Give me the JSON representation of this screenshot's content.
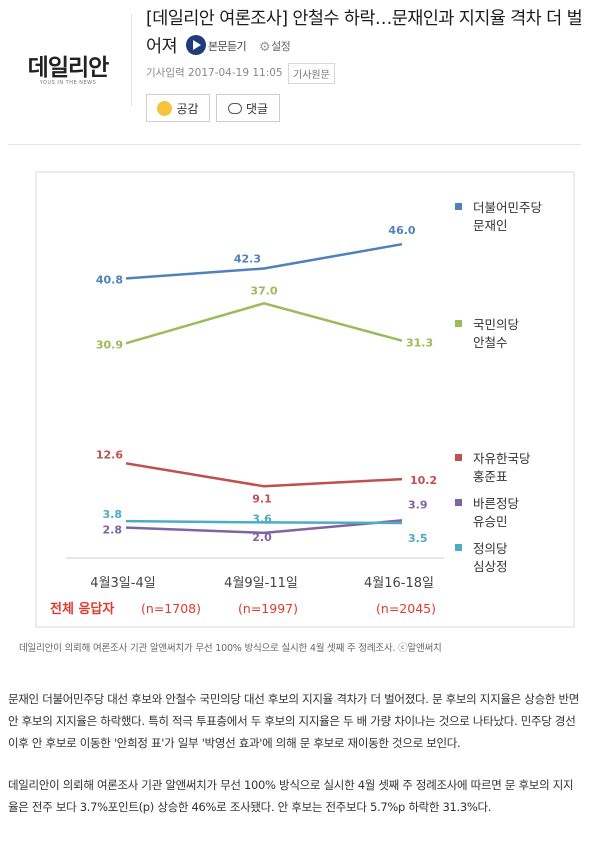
{
  "header": {
    "logo_text": "데일리안",
    "logo_sub": "YOUS IN THE NEWS",
    "title": "[데일리안 여론조사] 안철수 하락…문재인과 지지율 격차 더 벌어져",
    "listen_label": "본문듣기",
    "settings_label": "설정",
    "date_label": "기사입력 2017-04-19 11:05",
    "original_label": "기사원문",
    "like_label": "공감",
    "comment_label": "댓글"
  },
  "chart_data": {
    "type": "line",
    "categories": [
      "4월3일-4일",
      "4월9일-11일",
      "4월16-18일"
    ],
    "sample_sizes": [
      "(n=1708)",
      "(n=1997)",
      "(n=2045)"
    ],
    "sample_title": "전체 응답자",
    "ylim": [
      0,
      50
    ],
    "series": [
      {
        "party": "더불어민주당",
        "name": "문재인",
        "color": "#4f81bd",
        "values": [
          40.8,
          42.3,
          46.0
        ],
        "labels": [
          "40.8",
          "42.3",
          "46.0"
        ]
      },
      {
        "party": "국민의당",
        "name": "안철수",
        "color": "#9bbb59",
        "values": [
          30.9,
          37.0,
          31.3
        ],
        "labels": [
          "30.9",
          "37.0",
          "31.3"
        ]
      },
      {
        "party": "자유한국당",
        "name": "홍준표",
        "color": "#c0504d",
        "values": [
          12.6,
          9.1,
          10.2
        ],
        "labels": [
          "12.6",
          "9.1",
          "10.2"
        ]
      },
      {
        "party": "바른정당",
        "name": "유승민",
        "color": "#8064a2",
        "values": [
          2.8,
          2.0,
          3.9
        ],
        "labels": [
          "2.8",
          "2.0",
          "3.9"
        ]
      },
      {
        "party": "정의당",
        "name": "심상정",
        "color": "#4bacc6",
        "values": [
          3.8,
          3.6,
          3.5
        ],
        "labels": [
          "3.8",
          "3.6",
          "3.5"
        ]
      }
    ]
  },
  "caption": "데일리안이 의뢰해 여론조사 기관 알앤써치가 무선 100% 방식으로 실시한 4월 셋째 주 정례조사. ⓒ알앤써치",
  "body": {
    "p1": "문재인 더불어민주당 대선 후보와 안철수 국민의당 대선 후보의 지지율 격차가 더 벌어졌다. 문 후보의 지지율은 상승한 반면 안 후보의 지지율은 하락했다. 특히 적극 투표층에서 두 후보의 지지율은 두 배 가량 차이나는 것으로 나타났다. 민주당 경선 이후 안 후보로 이동한 '안희정 표'가 일부 '박영선 효과'에 의해 문 후보로 재이동한 것으로 보인다.",
    "p2": "데일리안이 의뢰해 여론조사 기관 알앤써치가 무선 100% 방식으로 실시한 4월 셋째 주 정례조사에 따르면 문 후보의 지지율은 전주 보다 3.7%포인트(p) 상승한 46%로 조사됐다. 안 후보는 전주보다 5.7%p 하락한 31.3%다."
  }
}
